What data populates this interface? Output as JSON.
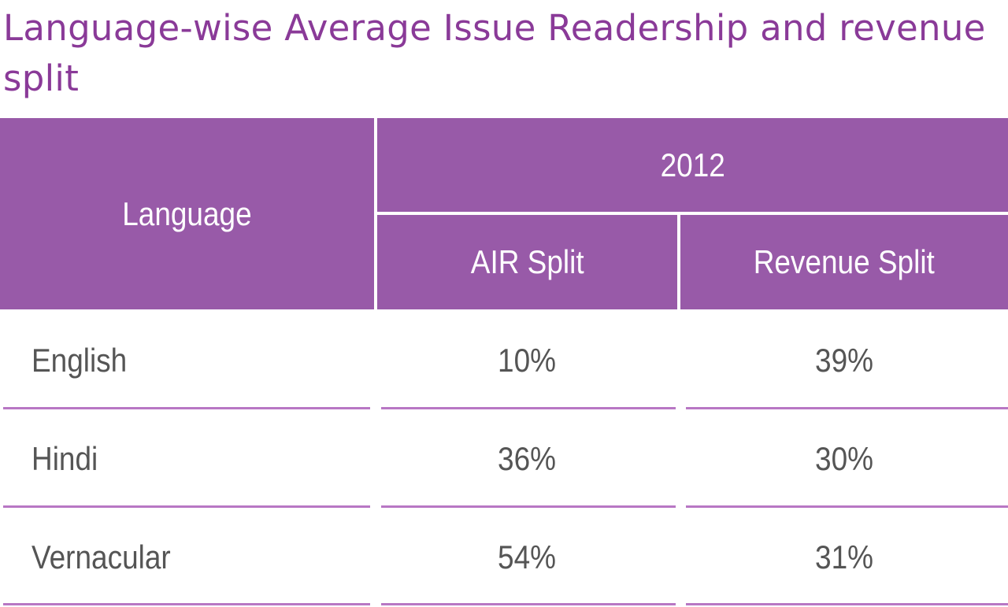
{
  "title": "Language-wise Average Issue Readership and revenue split",
  "colors": {
    "title": "#8a3a98",
    "header_bg": "#985aa8",
    "header_text": "#ffffff",
    "body_text": "#555555",
    "rule": "#b877c4"
  },
  "chart_data": {
    "type": "table",
    "title": "Language-wise Average Issue Readership and revenue split",
    "header": {
      "language": "Language",
      "year": "2012",
      "air_split": "AIR Split",
      "revenue_split": "Revenue Split"
    },
    "rows": [
      {
        "language": "English",
        "air_split": "10%",
        "revenue_split": "39%"
      },
      {
        "language": "Hindi",
        "air_split": "36%",
        "revenue_split": "30%"
      },
      {
        "language": "Vernacular",
        "air_split": "54%",
        "revenue_split": "31%"
      }
    ]
  }
}
